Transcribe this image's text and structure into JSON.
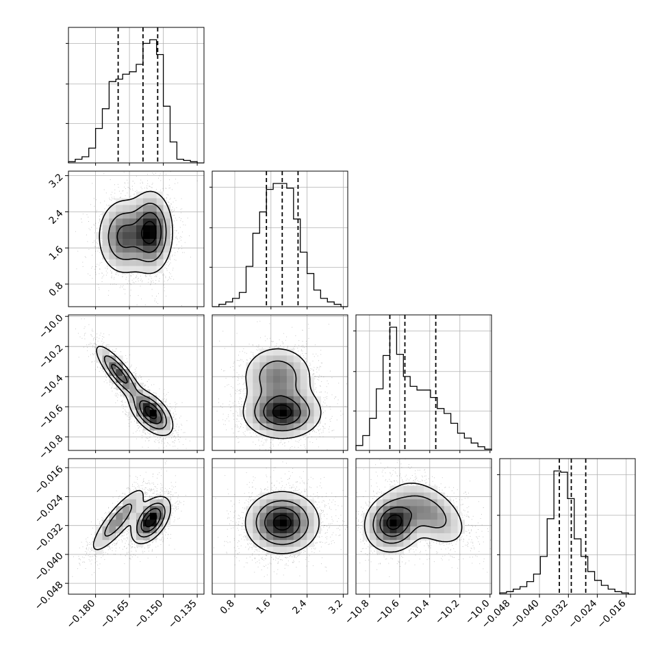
{
  "chart_data": {
    "type": "corner",
    "plot_type": "scatter",
    "title": "",
    "colors": {
      "hist": "#000000",
      "scatter": "#000000",
      "grid": "#b0b0b0",
      "frame": "#000000"
    },
    "grid": true,
    "parameters": [
      {
        "range": [
          -0.192,
          -0.132
        ],
        "ticks": [
          "−0.180",
          "−0.165",
          "−0.150",
          "−0.135"
        ],
        "tick_values": [
          -0.18,
          -0.165,
          -0.15,
          -0.135
        ],
        "quantiles": [
          -0.17,
          -0.159,
          -0.1525
        ],
        "hist": {
          "bins": [
            -0.192,
            -0.189,
            -0.186,
            -0.183,
            -0.18,
            -0.177,
            -0.174,
            -0.171,
            -0.168,
            -0.165,
            -0.162,
            -0.159,
            -0.156,
            -0.153,
            -0.15,
            -0.147,
            -0.144,
            -0.141,
            -0.138,
            -0.135,
            -0.132
          ],
          "counts": [
            0.01,
            0.03,
            0.05,
            0.12,
            0.28,
            0.44,
            0.66,
            0.68,
            0.72,
            0.74,
            0.8,
            0.97,
            1.0,
            0.88,
            0.46,
            0.17,
            0.03,
            0.02,
            0.01,
            0.0
          ]
        }
      },
      {
        "range": [
          0.3,
          3.3
        ],
        "ticks": [
          "0.8",
          "1.6",
          "2.4",
          "3.2"
        ],
        "tick_values": [
          0.8,
          1.6,
          2.4,
          3.2
        ],
        "quantiles": [
          1.5,
          1.85,
          2.2
        ],
        "hist": {
          "bins": [
            0.3,
            0.45,
            0.6,
            0.75,
            0.9,
            1.05,
            1.2,
            1.35,
            1.5,
            1.65,
            1.8,
            1.95,
            2.1,
            2.25,
            2.4,
            2.55,
            2.7,
            2.85,
            3.0,
            3.15,
            3.3
          ],
          "counts": [
            0.0,
            0.02,
            0.04,
            0.07,
            0.12,
            0.34,
            0.62,
            0.8,
            0.99,
            1.04,
            1.04,
            1.0,
            0.74,
            0.46,
            0.28,
            0.14,
            0.07,
            0.04,
            0.02,
            0.0
          ]
        }
      },
      {
        "range": [
          -10.89,
          -9.99
        ],
        "ticks": [
          "−10.8",
          "−10.6",
          "−10.4",
          "−10.2",
          "−10.0"
        ],
        "tick_values": [
          -10.8,
          -10.6,
          -10.4,
          -10.2,
          -10.0
        ],
        "quantiles": [
          -10.665,
          -10.565,
          -10.36
        ],
        "hist": {
          "bins": [
            -10.89,
            -10.845,
            -10.8,
            -10.755,
            -10.71,
            -10.665,
            -10.62,
            -10.575,
            -10.53,
            -10.485,
            -10.44,
            -10.395,
            -10.35,
            -10.305,
            -10.26,
            -10.215,
            -10.17,
            -10.125,
            -10.08,
            -10.035,
            -9.99
          ],
          "counts": [
            0.04,
            0.12,
            0.26,
            0.5,
            0.77,
            1.0,
            0.78,
            0.6,
            0.52,
            0.49,
            0.49,
            0.43,
            0.34,
            0.3,
            0.22,
            0.14,
            0.1,
            0.06,
            0.03,
            0.01
          ]
        }
      },
      {
        "range": [
          -0.051,
          -0.0135
        ],
        "ticks": [
          "−0.048",
          "−0.040",
          "−0.032",
          "−0.024",
          "−0.016"
        ],
        "tick_values": [
          -0.048,
          -0.04,
          -0.032,
          -0.024,
          -0.016
        ],
        "quantiles": [
          -0.0345,
          -0.0312,
          -0.0272
        ],
        "hist": {
          "bins": [
            -0.051,
            -0.049125,
            -0.04725,
            -0.045375,
            -0.0435,
            -0.041625,
            -0.03975,
            -0.037875,
            -0.036,
            -0.034125,
            -0.03225,
            -0.030375,
            -0.0285,
            -0.026625,
            -0.02475,
            -0.022875,
            -0.021,
            -0.019125,
            -0.01725,
            -0.015375,
            -0.0135
          ],
          "counts": [
            0.01,
            0.02,
            0.04,
            0.06,
            0.1,
            0.16,
            0.3,
            0.6,
            0.98,
            0.97,
            0.76,
            0.44,
            0.3,
            0.18,
            0.11,
            0.07,
            0.04,
            0.02,
            0.01,
            0.0
          ]
        }
      }
    ],
    "pairs": [
      {
        "row": 1,
        "col": 0,
        "modes": [
          {
            "x": -0.1675,
            "y": 1.85,
            "sx": 0.0055,
            "sy": 0.4,
            "rho": 0.0,
            "w": 0.45
          },
          {
            "x": -0.1555,
            "y": 1.95,
            "sx": 0.0045,
            "sy": 0.42,
            "rho": 0.0,
            "w": 0.55
          }
        ]
      },
      {
        "row": 2,
        "col": 0,
        "modes": [
          {
            "x": -0.1695,
            "y": -10.38,
            "sx": 0.005,
            "sy": 0.09,
            "rho": -0.85,
            "w": 0.4
          },
          {
            "x": -0.1555,
            "y": -10.64,
            "sx": 0.0045,
            "sy": 0.07,
            "rho": -0.55,
            "w": 0.6
          }
        ]
      },
      {
        "row": 2,
        "col": 1,
        "modes": [
          {
            "x": 1.85,
            "y": -10.64,
            "sx": 0.4,
            "sy": 0.08,
            "rho": 0.0,
            "w": 0.6
          },
          {
            "x": 1.75,
            "y": -10.4,
            "sx": 0.38,
            "sy": 0.1,
            "rho": 0.0,
            "w": 0.4
          }
        ]
      },
      {
        "row": 3,
        "col": 0,
        "modes": [
          {
            "x": -0.17,
            "y": -0.0305,
            "sx": 0.006,
            "sy": 0.0045,
            "rho": 0.85,
            "w": 0.4
          },
          {
            "x": -0.1555,
            "y": -0.0305,
            "sx": 0.004,
            "sy": 0.003,
            "rho": 0.5,
            "w": 0.6
          }
        ]
      },
      {
        "row": 3,
        "col": 1,
        "modes": [
          {
            "x": 1.85,
            "y": -0.0312,
            "sx": 0.38,
            "sy": 0.004,
            "rho": 0.0,
            "w": 1.0
          }
        ]
      },
      {
        "row": 3,
        "col": 2,
        "modes": [
          {
            "x": -10.64,
            "y": -0.0312,
            "sx": 0.09,
            "sy": 0.0038,
            "rho": 0.1,
            "w": 0.6
          },
          {
            "x": -10.4,
            "y": -0.0285,
            "sx": 0.12,
            "sy": 0.0045,
            "rho": -0.5,
            "w": 0.4
          }
        ]
      }
    ]
  }
}
